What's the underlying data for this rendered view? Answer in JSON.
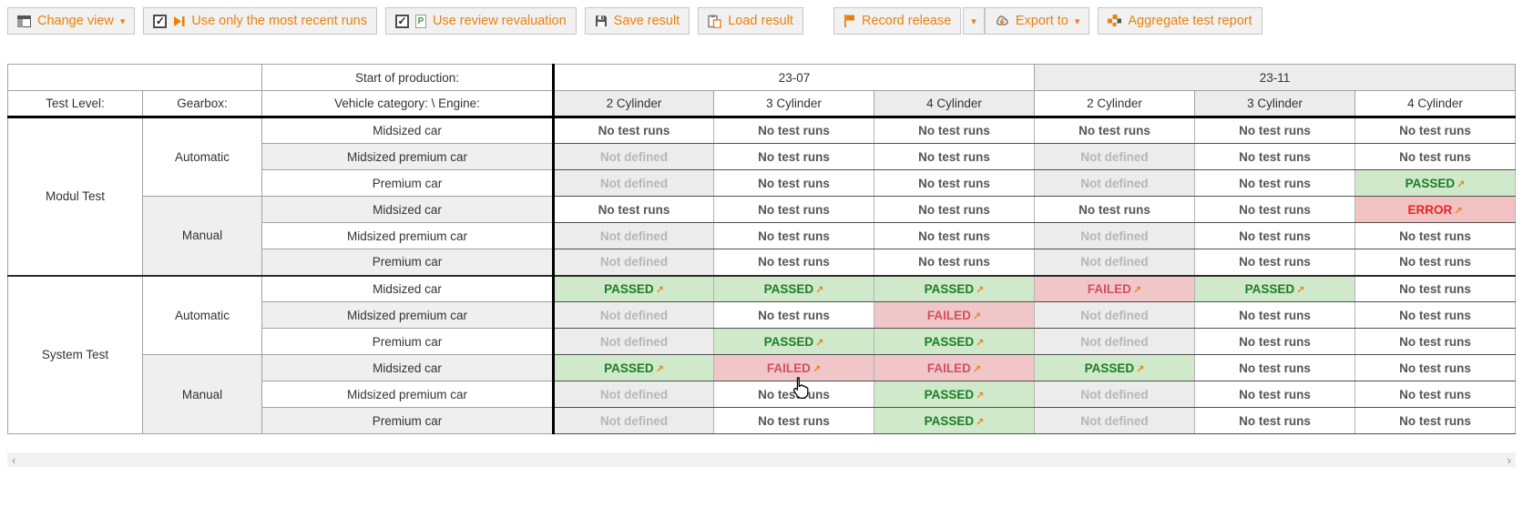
{
  "colors": {
    "accent": "#e8820d",
    "passed_bg": "#cfe9ca",
    "passed_text": "#1b7e24",
    "failed_bg": "#f0c6c9",
    "failed_text": "#d05060",
    "error_bg": "#f2c2c2",
    "error_text": "#e52525",
    "not_defined_bg": "#ececec",
    "not_defined_text": "#b6b6b6"
  },
  "toolbar": {
    "change_view": "Change view",
    "use_recent_runs": "Use only the most recent runs",
    "use_review_revaluation": "Use review revaluation",
    "save_result": "Save result",
    "load_result": "Load result",
    "record_release": "Record release",
    "export_to": "Export to",
    "aggregate_report": "Aggregate test report",
    "caret": "▾",
    "checkbox_check": "✓",
    "recent_runs_checked": true,
    "review_revaluation_checked": true,
    "review_doc_letter": "P"
  },
  "table": {
    "labels": {
      "start_of_production": "Start of production:",
      "test_level": "Test Level:",
      "gearbox": "Gearbox:",
      "vehicle_engine": "Vehicle category: \\ Engine:"
    },
    "periods": [
      {
        "label": "23-07",
        "cylinders": [
          "2 Cylinder",
          "3 Cylinder",
          "4 Cylinder"
        ]
      },
      {
        "label": "23-11",
        "cylinders": [
          "2 Cylinder",
          "3 Cylinder",
          "4 Cylinder"
        ]
      }
    ],
    "statuses": {
      "no_runs": {
        "label": "No test runs",
        "link": false
      },
      "not_defined": {
        "label": "Not defined",
        "link": false
      },
      "passed": {
        "label": "PASSED",
        "link": true
      },
      "failed": {
        "label": "FAILED",
        "link": true
      },
      "error": {
        "label": "ERROR",
        "link": true
      }
    },
    "link_arrow": "↗",
    "sections": [
      {
        "level": "Modul Test",
        "gearboxes": [
          {
            "name": "Automatic",
            "rows": [
              {
                "vehicle": "Midsized car",
                "cells": [
                  "no_runs",
                  "no_runs",
                  "no_runs",
                  "no_runs",
                  "no_runs",
                  "no_runs"
                ]
              },
              {
                "vehicle": "Midsized premium car",
                "cells": [
                  "not_defined",
                  "no_runs",
                  "no_runs",
                  "not_defined",
                  "no_runs",
                  "no_runs"
                ]
              },
              {
                "vehicle": "Premium car",
                "cells": [
                  "not_defined",
                  "no_runs",
                  "no_runs",
                  "not_defined",
                  "no_runs",
                  "passed"
                ]
              }
            ]
          },
          {
            "name": "Manual",
            "rows": [
              {
                "vehicle": "Midsized car",
                "cells": [
                  "no_runs",
                  "no_runs",
                  "no_runs",
                  "no_runs",
                  "no_runs",
                  "error"
                ]
              },
              {
                "vehicle": "Midsized premium car",
                "cells": [
                  "not_defined",
                  "no_runs",
                  "no_runs",
                  "not_defined",
                  "no_runs",
                  "no_runs"
                ]
              },
              {
                "vehicle": "Premium car",
                "cells": [
                  "not_defined",
                  "no_runs",
                  "no_runs",
                  "not_defined",
                  "no_runs",
                  "no_runs"
                ]
              }
            ]
          }
        ]
      },
      {
        "level": "System Test",
        "gearboxes": [
          {
            "name": "Automatic",
            "rows": [
              {
                "vehicle": "Midsized car",
                "cells": [
                  "passed",
                  "passed",
                  "passed",
                  "failed",
                  "passed",
                  "no_runs"
                ]
              },
              {
                "vehicle": "Midsized premium car",
                "cells": [
                  "not_defined",
                  "no_runs",
                  "failed",
                  "not_defined",
                  "no_runs",
                  "no_runs"
                ]
              },
              {
                "vehicle": "Premium car",
                "cells": [
                  "not_defined",
                  "passed",
                  "passed",
                  "not_defined",
                  "no_runs",
                  "no_runs"
                ]
              }
            ]
          },
          {
            "name": "Manual",
            "rows": [
              {
                "vehicle": "Midsized car",
                "cells": [
                  "passed",
                  "failed",
                  "failed",
                  "passed",
                  "no_runs",
                  "no_runs"
                ]
              },
              {
                "vehicle": "Midsized premium car",
                "cells": [
                  "not_defined",
                  "no_runs",
                  "passed",
                  "not_defined",
                  "no_runs",
                  "no_runs"
                ]
              },
              {
                "vehicle": "Premium car",
                "cells": [
                  "not_defined",
                  "no_runs",
                  "passed",
                  "not_defined",
                  "no_runs",
                  "no_runs"
                ]
              }
            ]
          }
        ]
      }
    ]
  },
  "scrollbar": {
    "left_arrow": "‹",
    "right_arrow": "›"
  }
}
